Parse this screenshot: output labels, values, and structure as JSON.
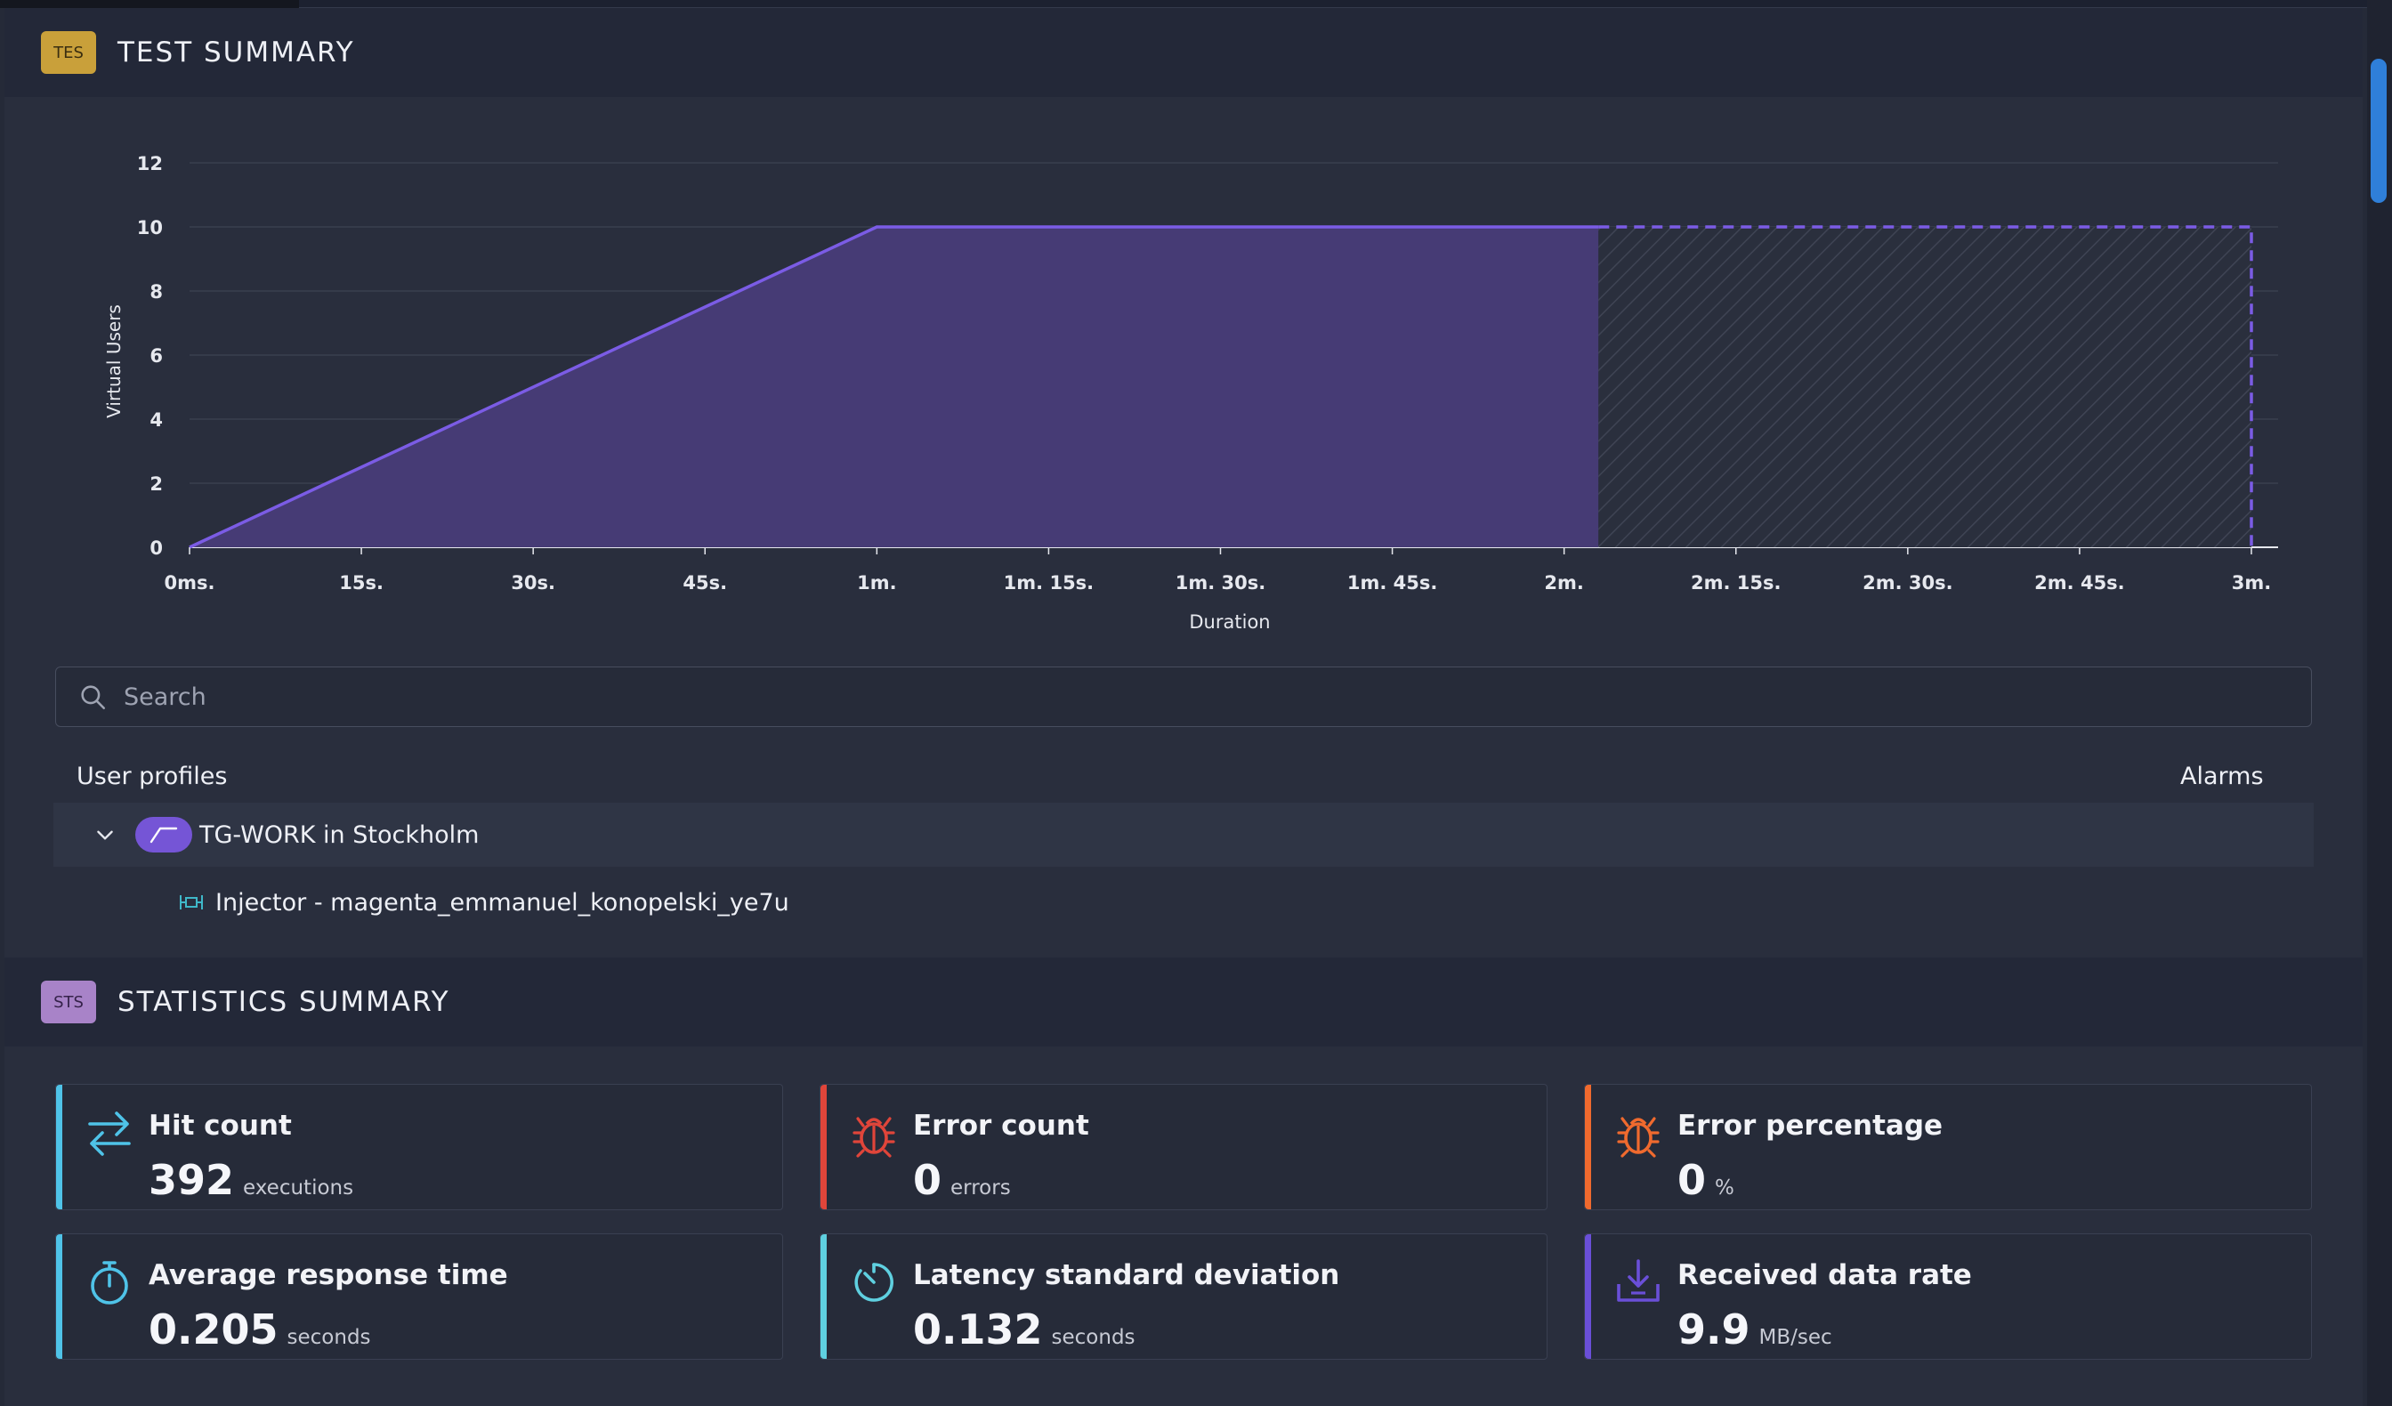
{
  "test_summary": {
    "badge": "TES",
    "title": "TEST SUMMARY"
  },
  "chart_data": {
    "type": "area",
    "ylabel": "Virtual Users",
    "xlabel": "Duration",
    "ylim": [
      0,
      12
    ],
    "yticks": [
      "0",
      "2",
      "4",
      "6",
      "8",
      "10",
      "12"
    ],
    "xticks": [
      "0ms.",
      "15s.",
      "30s.",
      "45s.",
      "1m.",
      "1m. 15s.",
      "1m. 30s.",
      "1m. 45s.",
      "2m.",
      "2m. 15s.",
      "2m. 30s.",
      "2m. 45s.",
      "3m."
    ],
    "xlim_seconds": [
      0,
      180
    ],
    "series": [
      {
        "points_seconds": [
          [
            0,
            0
          ],
          [
            60,
            10
          ],
          [
            123,
            10
          ]
        ],
        "style": "solid",
        "color": "#7b5ce5",
        "fill": "#463b75"
      },
      {
        "points_seconds": [
          [
            123,
            10
          ],
          [
            180,
            10
          ],
          [
            180,
            0
          ]
        ],
        "style": "dashed",
        "color": "#7b5ce5",
        "fill": "hatched"
      }
    ],
    "grid": true
  },
  "search": {
    "placeholder": "Search",
    "icon": "search-icon"
  },
  "profiles": {
    "col_user_profiles": "User profiles",
    "col_alarms": "Alarms",
    "group_name": "TG-WORK in Stockholm",
    "injector_name": "Injector - magenta_emmanuel_konopelski_ye7u"
  },
  "statistics_summary": {
    "badge": "STS",
    "title": "STATISTICS SUMMARY",
    "cards": [
      {
        "label": "Hit count",
        "value": "392",
        "unit": "executions",
        "icon": "arrows-exchange-icon",
        "accent": "#4fc3e8"
      },
      {
        "label": "Error count",
        "value": "0",
        "unit": "errors",
        "icon": "bug-icon",
        "accent": "#e0453a"
      },
      {
        "label": "Error percentage",
        "value": "0",
        "unit": "%",
        "icon": "bug-icon",
        "accent": "#f06a2e"
      },
      {
        "label": "Average response time",
        "value": "0.205",
        "unit": "seconds",
        "icon": "stopwatch-icon",
        "accent": "#4fc3e8"
      },
      {
        "label": "Latency standard deviation",
        "value": "0.132",
        "unit": "seconds",
        "icon": "timer-icon",
        "accent": "#5fd0e0"
      },
      {
        "label": "Received data rate",
        "value": "9.9",
        "unit": "MB/sec",
        "icon": "download-icon",
        "accent": "#6a4fd8"
      }
    ]
  },
  "colors": {
    "background": "#292e3d",
    "header": "#232838",
    "accent_purple": "#7b5ce5"
  }
}
